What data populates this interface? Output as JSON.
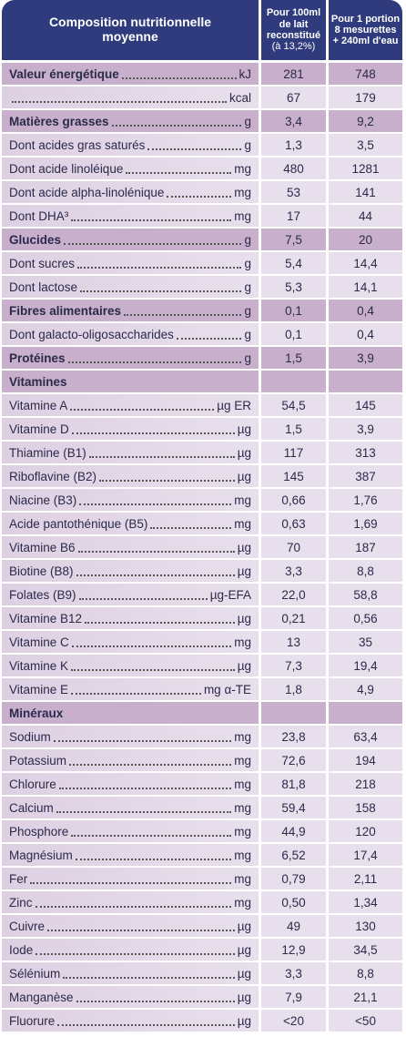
{
  "header": {
    "title": [
      "Composition nutritionnelle",
      "moyenne"
    ],
    "col1": [
      "Pour 100ml",
      "de lait",
      "reconstitué",
      "(à 13,2%)"
    ],
    "col2": [
      "Pour 1 portion",
      "8 mesurettes",
      "+ 240ml d'eau"
    ]
  },
  "table": {
    "rows": [
      {
        "label": "Valeur énergétique",
        "unit": "kJ",
        "v1": "281",
        "v2": "748",
        "emphasis": true
      },
      {
        "unit": "kcal",
        "v1": "67",
        "v2": "179"
      },
      {
        "label": "Matières grasses",
        "unit": "g",
        "v1": "3,4",
        "v2": "9,2",
        "emphasis": true
      },
      {
        "label": "Dont acides gras saturés",
        "unit": "g",
        "v1": "1,3",
        "v2": "3,5"
      },
      {
        "label": "Dont acide linoléique",
        "unit": "mg",
        "v1": "480",
        "v2": "1281"
      },
      {
        "label": "Dont acide alpha-linolénique",
        "unit": "mg",
        "v1": "53",
        "v2": "141"
      },
      {
        "label": "Dont DHA³",
        "unit": "mg",
        "v1": "17",
        "v2": "44"
      },
      {
        "label": "Glucides",
        "unit": "g",
        "v1": "7,5",
        "v2": "20",
        "emphasis": true
      },
      {
        "label": "Dont sucres",
        "unit": "g",
        "v1": "5,4",
        "v2": "14,4"
      },
      {
        "label": "Dont lactose",
        "unit": "g",
        "v1": "5,3",
        "v2": "14,1"
      },
      {
        "label": "Fibres alimentaires",
        "unit": "g",
        "v1": "0,1",
        "v2": "0,4",
        "emphasis": true
      },
      {
        "label": "Dont galacto-oligosaccharides",
        "unit": "g",
        "v1": "0,1",
        "v2": "0,4"
      },
      {
        "label": "Protéines",
        "unit": "g",
        "v1": "1,5",
        "v2": "3,9",
        "emphasis": true
      },
      {
        "label": "Vitamines",
        "emphasis": true
      },
      {
        "label": "Vitamine A",
        "unit": "µg ER",
        "v1": "54,5",
        "v2": "145"
      },
      {
        "label": "Vitamine D",
        "unit": "µg",
        "v1": "1,5",
        "v2": "3,9"
      },
      {
        "label": "Thiamine (B1)",
        "unit": "µg",
        "v1": "117",
        "v2": "313"
      },
      {
        "label": "Riboflavine (B2)",
        "unit": "µg",
        "v1": "145",
        "v2": "387"
      },
      {
        "label": "Niacine (B3)",
        "unit": "mg",
        "v1": "0,66",
        "v2": "1,76"
      },
      {
        "label": "Acide pantothénique (B5)",
        "unit": "mg",
        "v1": "0,63",
        "v2": "1,69"
      },
      {
        "label": "Vitamine B6",
        "unit": "µg",
        "v1": "70",
        "v2": "187"
      },
      {
        "label": "Biotine (B8)",
        "unit": "µg",
        "v1": "3,3",
        "v2": "8,8"
      },
      {
        "label": "Folates (B9)",
        "unit": "µg-EFA",
        "v1": "22,0",
        "v2": "58,8"
      },
      {
        "label": "Vitamine B12",
        "unit": "µg",
        "v1": "0,21",
        "v2": "0,56"
      },
      {
        "label": "Vitamine C",
        "unit": "mg",
        "v1": "13",
        "v2": "35"
      },
      {
        "label": "Vitamine K",
        "unit": "µg",
        "v1": "7,3",
        "v2": "19,4"
      },
      {
        "label": "Vitamine E",
        "unit": "mg α-TE",
        "v1": "1,8",
        "v2": "4,9"
      },
      {
        "label": "Minéraux",
        "emphasis": true
      },
      {
        "label": "Sodium",
        "unit": "mg",
        "v1": "23,8",
        "v2": "63,4"
      },
      {
        "label": "Potassium",
        "unit": "mg",
        "v1": "72,6",
        "v2": "194"
      },
      {
        "label": "Chlorure",
        "unit": "mg",
        "v1": "81,8",
        "v2": "218"
      },
      {
        "label": "Calcium",
        "unit": "mg",
        "v1": "59,4",
        "v2": "158"
      },
      {
        "label": "Phosphore",
        "unit": "mg",
        "v1": "44,9",
        "v2": "120"
      },
      {
        "label": "Magnésium",
        "unit": "mg",
        "v1": "6,52",
        "v2": "17,4"
      },
      {
        "label": "Fer",
        "unit": "mg",
        "v1": "0,79",
        "v2": "2,11"
      },
      {
        "label": "Zinc",
        "unit": "mg",
        "v1": "0,50",
        "v2": "1,34"
      },
      {
        "label": "Cuivre",
        "unit": "µg",
        "v1": "49",
        "v2": "130"
      },
      {
        "label": "Iode",
        "unit": "µg",
        "v1": "12,9",
        "v2": "34,5"
      },
      {
        "label": "Sélénium",
        "unit": "µg",
        "v1": "3,3",
        "v2": "8,8"
      },
      {
        "label": "Manganèse",
        "unit": "µg",
        "v1": "7,9",
        "v2": "21,1"
      },
      {
        "label": "Fluorure",
        "unit": "µg",
        "v1": "<20",
        "v2": "<50"
      }
    ]
  }
}
